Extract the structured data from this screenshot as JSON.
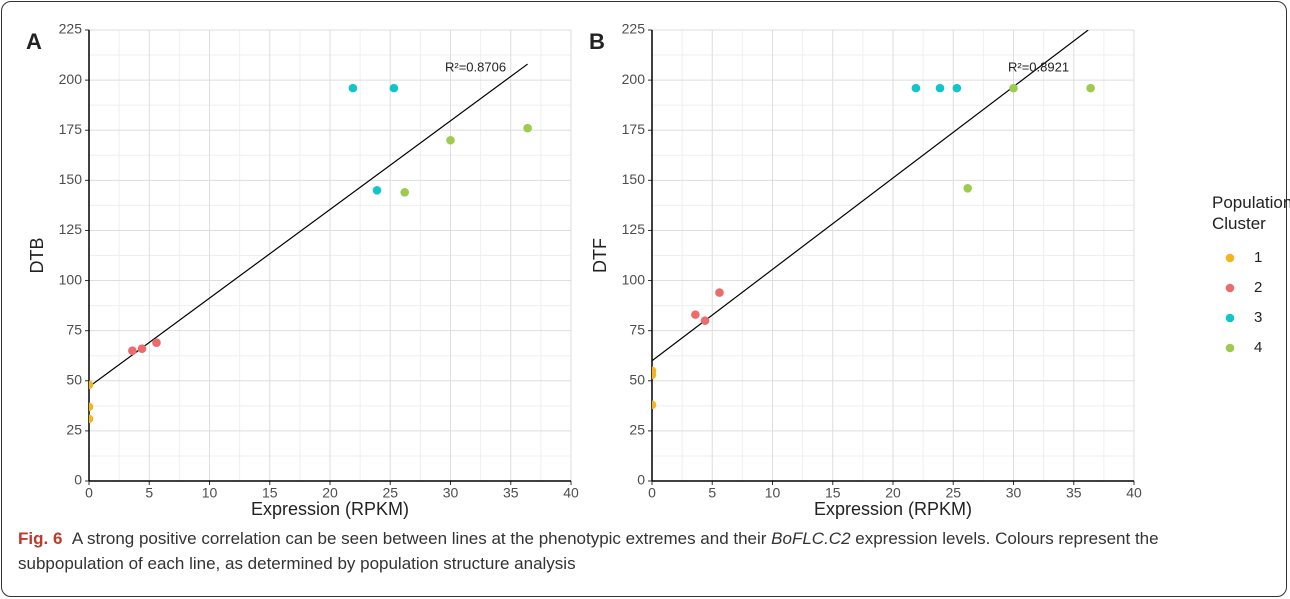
{
  "chart_data": [
    {
      "type": "scatter",
      "panel": "A",
      "xlabel": "Expression (RPKM)",
      "ylabel": "DTB",
      "xlim": [
        0,
        40
      ],
      "xticks": [
        0,
        5,
        10,
        15,
        20,
        25,
        30,
        35,
        40
      ],
      "ylim": [
        0,
        225
      ],
      "yticks": [
        0,
        25,
        50,
        75,
        100,
        125,
        150,
        175,
        200,
        225
      ],
      "grid": true,
      "series": [
        {
          "color": "#f2b51e",
          "x": [
            0,
            0,
            0
          ],
          "values": [
            48,
            37,
            31
          ]
        },
        {
          "color": "#ee6b6b",
          "x": [
            3.6,
            4.4,
            5.6
          ],
          "values": [
            65,
            66,
            69
          ]
        },
        {
          "color": "#12c4cc",
          "x": [
            21.9,
            25.3,
            23.9
          ],
          "values": [
            196,
            196,
            145
          ]
        },
        {
          "color": "#9ccb4e",
          "x": [
            30,
            36.4,
            26.2
          ],
          "values": [
            170,
            176,
            144
          ]
        }
      ],
      "fit_line": {
        "x": [
          0,
          36.4
        ],
        "y": [
          47,
          208
        ]
      },
      "annotation": "R²=0.8706"
    },
    {
      "type": "scatter",
      "panel": "B",
      "xlabel": "Expression (RPKM)",
      "ylabel": "DTF",
      "xlim": [
        0,
        40
      ],
      "xticks": [
        0,
        5,
        10,
        15,
        20,
        25,
        30,
        35,
        40
      ],
      "ylim": [
        0,
        225
      ],
      "yticks": [
        0,
        25,
        50,
        75,
        100,
        125,
        150,
        175,
        200,
        225
      ],
      "grid": true,
      "series": [
        {
          "color": "#f2b51e",
          "x": [
            0,
            0,
            0
          ],
          "values": [
            55,
            53,
            38
          ]
        },
        {
          "color": "#ee6b6b",
          "x": [
            3.6,
            4.4,
            5.6
          ],
          "values": [
            83,
            80,
            94
          ]
        },
        {
          "color": "#12c4cc",
          "x": [
            21.9,
            23.9,
            25.3
          ],
          "values": [
            196,
            196,
            196
          ]
        },
        {
          "color": "#9ccb4e",
          "x": [
            30,
            36.4,
            26.2
          ],
          "values": [
            196,
            196,
            146
          ]
        }
      ],
      "fit_line": {
        "x": [
          0,
          36.2
        ],
        "y": [
          60,
          225
        ]
      },
      "annotation": "R²=0.8921"
    }
  ],
  "legend": {
    "title": "Population Cluster",
    "entries": [
      {
        "name": "1",
        "color": "#f2b51e"
      },
      {
        "name": "2",
        "color": "#ee6b6b"
      },
      {
        "name": "3",
        "color": "#12c4cc"
      },
      {
        "name": "4",
        "color": "#9ccb4e"
      }
    ]
  },
  "caption": {
    "label": "Fig. 6",
    "text_before": "A strong positive correlation can be seen between lines at the phenotypic extremes and their ",
    "gene": "BoFLC.C2",
    "text_after": " expression levels. Colours represent the subpopulation of each line, as determined by population structure analysis"
  }
}
